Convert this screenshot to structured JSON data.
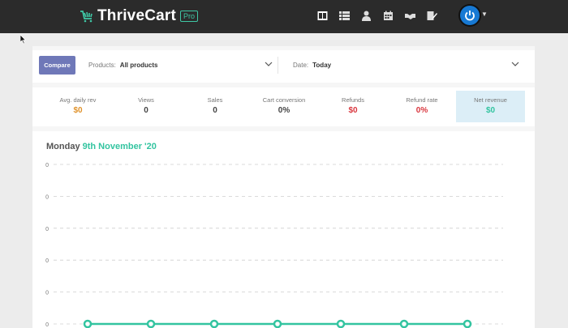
{
  "app": {
    "name": "ThriveCart",
    "badge": "Pro"
  },
  "nav_icons": [
    "dashboard-icon",
    "list-icon",
    "user-icon",
    "calendar-icon",
    "handshake-icon",
    "edit-document-icon"
  ],
  "filters": {
    "compare_label": "Compare",
    "products_label": "Products:",
    "products_value": "All products",
    "date_label": "Date:",
    "date_value": "Today"
  },
  "stats": [
    {
      "label": "Avg. daily rev",
      "value": "$0",
      "color": "#e0922a"
    },
    {
      "label": "Views",
      "value": "0",
      "color": "#444444"
    },
    {
      "label": "Sales",
      "value": "0",
      "color": "#444444"
    },
    {
      "label": "Cart conversion",
      "value": "0%",
      "color": "#444444"
    },
    {
      "label": "Refunds",
      "value": "$0",
      "color": "#d9363e"
    },
    {
      "label": "Refund rate",
      "value": "0%",
      "color": "#d9363e"
    },
    {
      "label": "Net revenue",
      "value": "$0",
      "color": "#33c4a0"
    }
  ],
  "chart": {
    "day": "Monday",
    "date": "9th November '20"
  },
  "chart_data": {
    "type": "line",
    "title": "Monday 9th November '20",
    "ytick_labels": [
      "0",
      "0",
      "0",
      "0",
      "0",
      "0"
    ],
    "series": [
      {
        "values": [
          0,
          0,
          0,
          0,
          0,
          0,
          0
        ]
      }
    ],
    "grid": true,
    "colors": {
      "line": "#33c4a0"
    }
  }
}
